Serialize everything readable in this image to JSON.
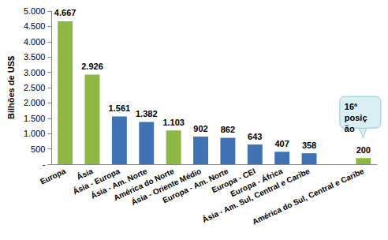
{
  "chart_data": {
    "type": "bar",
    "y_label": "Bilhões de US$",
    "categories": [
      "Europa",
      "Ásia",
      "Ásia - Europa",
      "Ásia - Am. Norte",
      "América do Norte",
      "Ásia - Oriente Médio",
      "Europa - Am. Norte",
      "Europa - CEI",
      "Europa - África",
      "Ásia - Am. Sul, Central e Caribe",
      null,
      "América do Sul, Central e Caribe"
    ],
    "values": [
      4667,
      2926,
      1561,
      1382,
      1103,
      902,
      862,
      643,
      407,
      358,
      null,
      200
    ],
    "value_labels": [
      "4.667",
      "2.926",
      "1.561",
      "1.382",
      "1.103",
      "902",
      "862",
      "643",
      "407",
      "358",
      null,
      "200"
    ],
    "colors": [
      "#8db843",
      "#8db843",
      "#3f73b5",
      "#3f73b5",
      "#8db843",
      "#3f73b5",
      "#3f73b5",
      "#3f73b5",
      "#3f73b5",
      "#3f73b5",
      null,
      "#8db843"
    ],
    "ylim": [
      0,
      5000
    ],
    "yticks": [
      {
        "value": 0,
        "label": "-"
      },
      500,
      {
        "value": 1000,
        "label": "1.000"
      },
      {
        "value": 1500,
        "label": "1.500"
      },
      {
        "value": 2000,
        "label": "2.000"
      },
      {
        "value": 2500,
        "label": "2.500"
      },
      {
        "value": 3000,
        "label": "3.000"
      },
      {
        "value": 3500,
        "label": "3.500"
      },
      {
        "value": 4000,
        "label": "4.000"
      },
      {
        "value": 4500,
        "label": "4.500"
      },
      {
        "value": 5000,
        "label": "5.000"
      }
    ],
    "annotation": "16ª posição",
    "data_labels": true,
    "grid": false
  }
}
